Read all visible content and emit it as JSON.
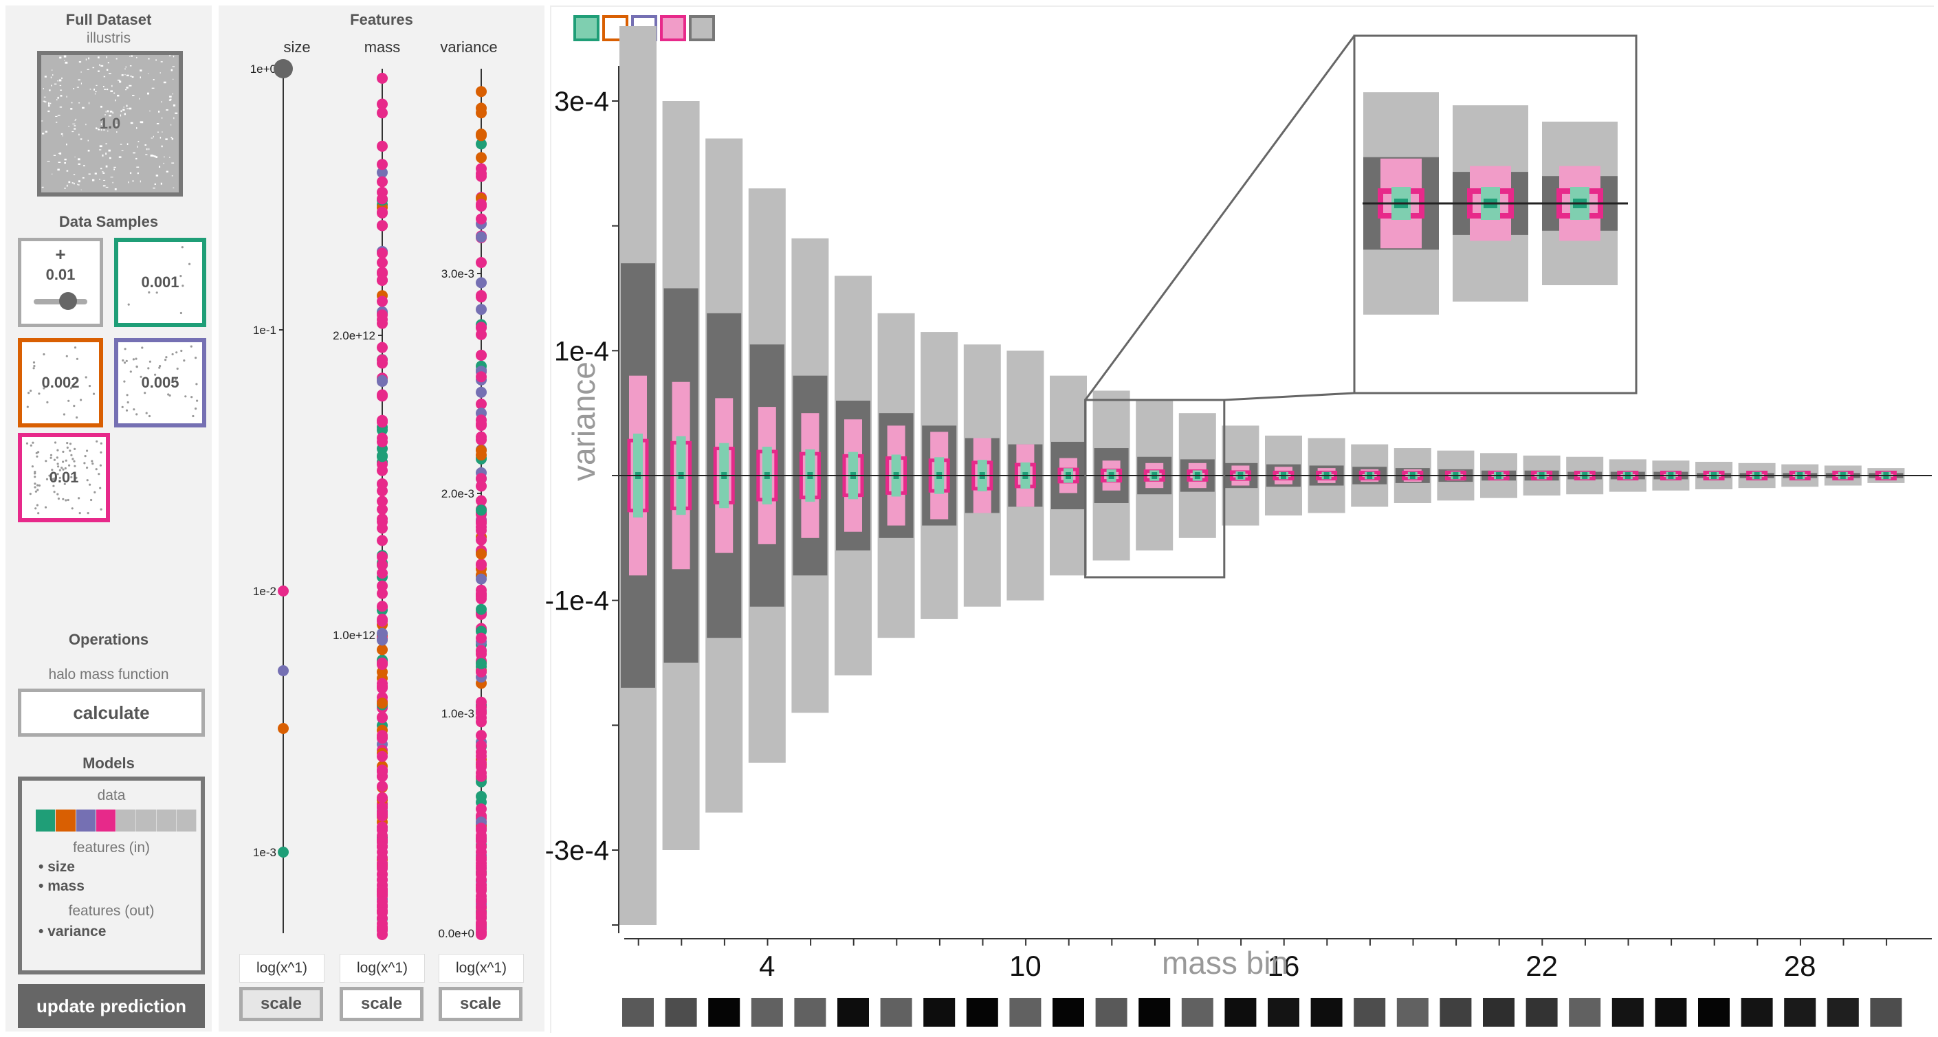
{
  "left": {
    "full_dataset_title": "Full Dataset",
    "dataset_name": "illustris",
    "full_value": "1.0",
    "samples_title": "Data Samples",
    "add_symbol": "+",
    "slider_value": "0.01",
    "samples": [
      {
        "value": "0.001",
        "color": "#1f9e77"
      },
      {
        "value": "0.002",
        "color": "#d95f02"
      },
      {
        "value": "0.005",
        "color": "#7570b3"
      },
      {
        "value": "0.01",
        "color": "#e7298a"
      }
    ],
    "operations_title": "Operations",
    "operation_name": "halo mass function",
    "calculate_label": "calculate",
    "models_title": "Models",
    "model_data_label": "data",
    "model_colors": [
      "#1f9e77",
      "#d95f02",
      "#7570b3",
      "#e7298a",
      "#bdbdbd",
      "#bdbdbd",
      "#bdbdbd",
      "#bdbdbd"
    ],
    "features_in_label": "features (in)",
    "features_in": [
      "size",
      "mass"
    ],
    "features_out_label": "features (out)",
    "features_out": [
      "variance"
    ],
    "update_label": "update prediction"
  },
  "features": {
    "title": "Features",
    "columns": [
      {
        "name": "size",
        "ticks": [
          "1e+0",
          "1e-1",
          "1e-2",
          "1e-3"
        ],
        "transform": "log(x^1)",
        "scale_label": "scale"
      },
      {
        "name": "mass",
        "ticks": [
          "2.0e+12",
          "1.0e+12"
        ],
        "transform": "log(x^1)",
        "scale_label": "scale"
      },
      {
        "name": "variance",
        "ticks": [
          "3.0e-3",
          "2.0e-3",
          "1.0e-3",
          "0.0e+0"
        ],
        "transform": "log(x^1)",
        "scale_label": "scale"
      }
    ]
  },
  "main": {
    "legend": [
      {
        "color": "#1f9e77",
        "fill": "#7fcfb0"
      },
      {
        "color": "#d95f02",
        "fill": "#ffffff"
      },
      {
        "color": "#7570b3",
        "fill": "#ffffff"
      },
      {
        "color": "#e7298a",
        "fill": "#f19cc8"
      },
      {
        "color": "#777777",
        "fill": "#bdbdbd"
      }
    ]
  },
  "chart_data": {
    "type": "bar",
    "title": "",
    "xlabel": "mass bin",
    "ylabel": "variance",
    "y_ticks": [
      "3e-4",
      "1e-4",
      "-1e-4",
      "-3e-4"
    ],
    "x_ticks": [
      "4",
      "10",
      "16",
      "22",
      "28"
    ],
    "ylim": [
      -0.00036,
      0.00036
    ],
    "bins": [
      1,
      2,
      3,
      4,
      5,
      6,
      7,
      8,
      9,
      10,
      11,
      12,
      13,
      14,
      15,
      16,
      17,
      18,
      19,
      20,
      21,
      22,
      23,
      24,
      25,
      26,
      27,
      28,
      29,
      30
    ],
    "outer_halfwidth": [
      0.00036,
      0.0003,
      0.00027,
      0.00023,
      0.00019,
      0.00016,
      0.00013,
      0.000115,
      0.000105,
      0.0001,
      8e-05,
      6.8e-05,
      6e-05,
      5e-05,
      4e-05,
      3.2e-05,
      3e-05,
      2.5e-05,
      2.2e-05,
      2e-05,
      1.8e-05,
      1.6e-05,
      1.5e-05,
      1.3e-05,
      1.2e-05,
      1.1e-05,
      1e-05,
      9e-06,
      8e-06,
      6e-06
    ],
    "inner_halfwidth": [
      0.00017,
      0.00015,
      0.00013,
      0.000105,
      8e-05,
      6e-05,
      5e-05,
      4e-05,
      3e-05,
      2.5e-05,
      2.7e-05,
      2.2e-05,
      1.5e-05,
      1.3e-05,
      1e-05,
      9e-06,
      8e-06,
      7e-06,
      6e-06,
      5e-06,
      4e-06,
      4e-06,
      3e-06,
      3e-06,
      3e-06,
      2e-06,
      2e-06,
      2e-06,
      2e-06,
      2e-06
    ],
    "sample_halfwidth": [
      8e-05,
      7.5e-05,
      6.2e-05,
      5.5e-05,
      5e-05,
      4.5e-05,
      4e-05,
      3.5e-05,
      3e-05,
      2.5e-05,
      1.4e-05,
      1.2e-05,
      1e-05,
      1e-05,
      8e-06,
      7e-06,
      6e-06,
      5e-06,
      5e-06,
      4e-06,
      4e-06,
      3e-06,
      3e-06,
      3e-06,
      3e-06,
      2e-06,
      2e-06,
      2e-06,
      2e-06,
      2e-06
    ],
    "bin_gray": [
      0.35,
      0.3,
      0.02,
      0.38,
      0.38,
      0.05,
      0.38,
      0.05,
      0.02,
      0.38,
      0.02,
      0.35,
      0.02,
      0.38,
      0.05,
      0.08,
      0.05,
      0.3,
      0.38,
      0.25,
      0.18,
      0.2,
      0.38,
      0.08,
      0.05,
      0.02,
      0.08,
      0.1,
      0.12,
      0.3
    ]
  }
}
